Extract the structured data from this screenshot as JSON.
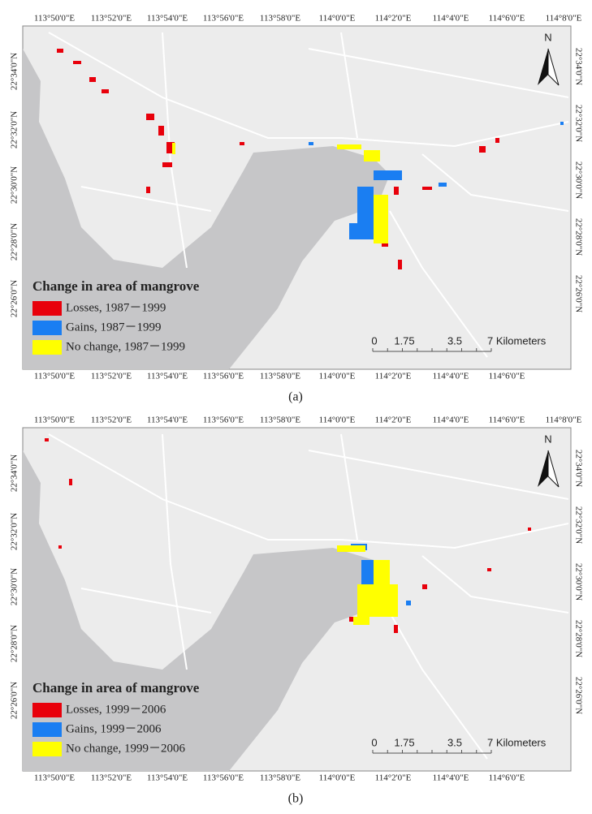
{
  "panels": [
    {
      "caption": "(a)",
      "top_labels": [
        "113°50'0\"E",
        "113°52'0\"E",
        "113°54'0\"E",
        "113°56'0\"E",
        "113°58'0\"E",
        "114°0'0\"E",
        "114°2'0\"E",
        "114°4'0\"E",
        "114°6'0\"E",
        "114°8'0\"E"
      ],
      "bottom_labels": [
        "113°50'0\"E",
        "113°52'0\"E",
        "113°54'0\"E",
        "113°56'0\"E",
        "113°58'0\"E",
        "114°0'0\"E",
        "114°2'0\"E",
        "114°4'0\"E",
        "114°6'0\"E"
      ],
      "left_labels": [
        "22°34'0\"N",
        "22°32'0\"N",
        "22°30'0\"N",
        "22°28'0\"N",
        "22°26'0\"N"
      ],
      "right_labels": [
        "22°34'0\"N",
        "22°32'0\"N",
        "22°30'0\"N",
        "22°28'0\"N",
        "22°26'0\"N"
      ],
      "north": "N",
      "legend": {
        "title": "Change in area of mangrove",
        "items": [
          {
            "label": "Losses, 1987－1999",
            "color": "#e8000b"
          },
          {
            "label": "Gains, 1987－1999",
            "color": "#1a7ef2"
          },
          {
            "label": "No change, 1987－1999",
            "color": "#ffff00"
          }
        ]
      },
      "scale": [
        "0",
        "1.75",
        "3.5",
        "7 Kilometers"
      ]
    },
    {
      "caption": "(b)",
      "top_labels": [
        "113°50'0\"E",
        "113°52'0\"E",
        "113°54'0\"E",
        "113°56'0\"E",
        "113°58'0\"E",
        "114°0'0\"E",
        "114°2'0\"E",
        "114°4'0\"E",
        "114°6'0\"E",
        "114°8'0\"E"
      ],
      "bottom_labels": [
        "113°50'0\"E",
        "113°52'0\"E",
        "113°54'0\"E",
        "113°56'0\"E",
        "113°58'0\"E",
        "114°0'0\"E",
        "114°2'0\"E",
        "114°4'0\"E",
        "114°6'0\"E"
      ],
      "left_labels": [
        "22°34'0\"N",
        "22°32'0\"N",
        "22°30'0\"N",
        "22°28'0\"N",
        "22°26'0\"N"
      ],
      "right_labels": [
        "22°34'0\"N",
        "22°32'0\"N",
        "22°30'0\"N",
        "22°28'0\"N",
        "22°26'0\"N"
      ],
      "north": "N",
      "legend": {
        "title": "Change in area of mangrove",
        "items": [
          {
            "label": "Losses, 1999－2006",
            "color": "#e8000b"
          },
          {
            "label": "Gains, 1999－2006",
            "color": "#1a7ef2"
          },
          {
            "label": "No change, 1999－2006",
            "color": "#ffff00"
          }
        ]
      },
      "scale": [
        "0",
        "1.75",
        "3.5",
        "7 Kilometers"
      ]
    }
  ]
}
